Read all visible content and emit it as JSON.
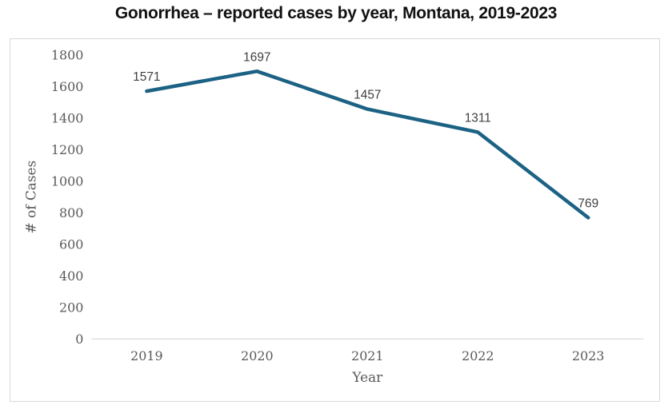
{
  "chart_data": {
    "type": "line",
    "title": "Gonorrhea – reported cases by year, Montana, 2019-2023",
    "categories": [
      "2019",
      "2020",
      "2021",
      "2022",
      "2023"
    ],
    "values": [
      1571,
      1697,
      1457,
      1311,
      769
    ],
    "data_labels": [
      "1571",
      "1697",
      "1457",
      "1311",
      "769"
    ],
    "xlabel": "Year",
    "ylabel": "# of Cases",
    "ylim": [
      0,
      1800
    ],
    "yticks": [
      0,
      200,
      400,
      600,
      800,
      1000,
      1200,
      1400,
      1600,
      1800
    ],
    "grid": "off",
    "legend": "none",
    "series_count": 1,
    "colors": {
      "line": "#1C6284",
      "title_text": "#111111",
      "tick_text": "#595959",
      "axis_title_text": "#595959",
      "data_label_text": "#404040",
      "axis_line": "#D9D9D9",
      "frame_border": "#D9D9D9",
      "background": "#FFFFFF"
    }
  }
}
